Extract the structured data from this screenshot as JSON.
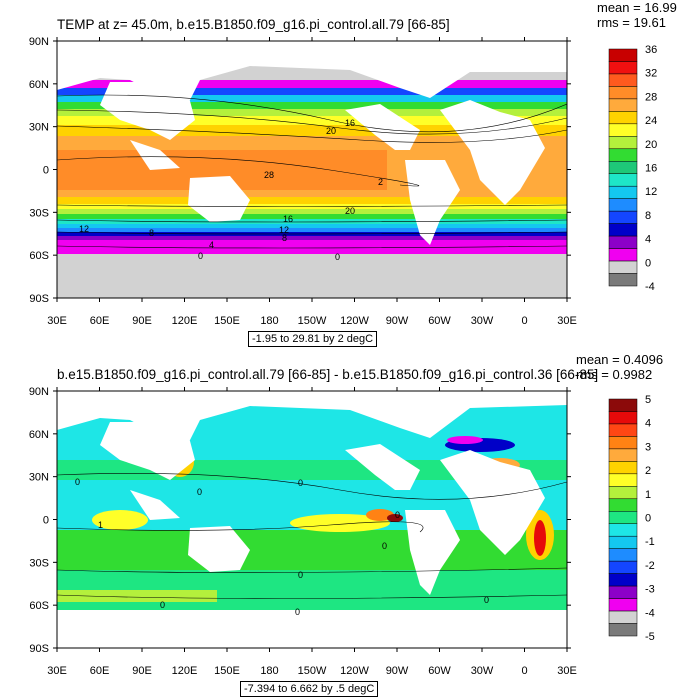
{
  "panel1": {
    "title": "TEMP at z=  45.0m, b.e15.B1850.f09_g16.pi_control.all.79 [66-85]",
    "mean": "mean = 16.99",
    "rms": "rms = 19.61",
    "range_label": "-1.95 to 29.81 by 2 degC",
    "colorbar_labels": [
      "36",
      "32",
      "28",
      "24",
      "20",
      "16",
      "12",
      "8",
      "4",
      "0",
      "-4"
    ],
    "colorbar_colors": [
      "#c80000",
      "#f01010",
      "#ff5a1e",
      "#ff8c28",
      "#ffaa3c",
      "#ffd200",
      "#ffff28",
      "#b4f03c",
      "#32dc32",
      "#1ec878",
      "#1ee6c8",
      "#14c8f0",
      "#1e8cff",
      "#1446ff",
      "#0000c8",
      "#8c00c8",
      "#f000f0",
      "#d2d2d2",
      "#7a7a7a"
    ],
    "contour_labels": [
      "16",
      "20",
      "28",
      "2",
      "20",
      "16",
      "12",
      "8",
      "0",
      "4",
      "0",
      "12",
      "8"
    ]
  },
  "panel2": {
    "title": "b.e15.B1850.f09_g16.pi_control.all.79 [66-85] - b.e15.B1850.f09_g16.pi_control.36 [66-85]",
    "mean": "mean = 0.4096",
    "rms": "rms = 0.9982",
    "range_label": "-7.394 to 6.662 by .5 degC",
    "colorbar_labels": [
      "5",
      "4",
      "3",
      "2",
      "1",
      "0",
      "-1",
      "-2",
      "-3",
      "-4",
      "-5"
    ],
    "colorbar_colors": [
      "#8c0a0a",
      "#e60a0a",
      "#ff4614",
      "#ff8214",
      "#ffaa3c",
      "#ffd200",
      "#ffff28",
      "#b4f03c",
      "#32dc32",
      "#1ee682",
      "#1ee6e6",
      "#14c8f0",
      "#1e8cff",
      "#1446ff",
      "#0000c8",
      "#8c00c8",
      "#f000f0",
      "#d2d2d2",
      "#7a7a7a"
    ],
    "contour_labels": [
      "0",
      "0",
      "0",
      "1",
      "0",
      "0",
      "0",
      "0",
      "0",
      "0"
    ]
  },
  "axes": {
    "lat_ticks": [
      "90N",
      "60N",
      "30N",
      "0",
      "30S",
      "60S",
      "90S"
    ],
    "lon_ticks": [
      "30E",
      "60E",
      "90E",
      "120E",
      "150E",
      "180",
      "150W",
      "120W",
      "90W",
      "60W",
      "30W",
      "0",
      "30E"
    ]
  }
}
